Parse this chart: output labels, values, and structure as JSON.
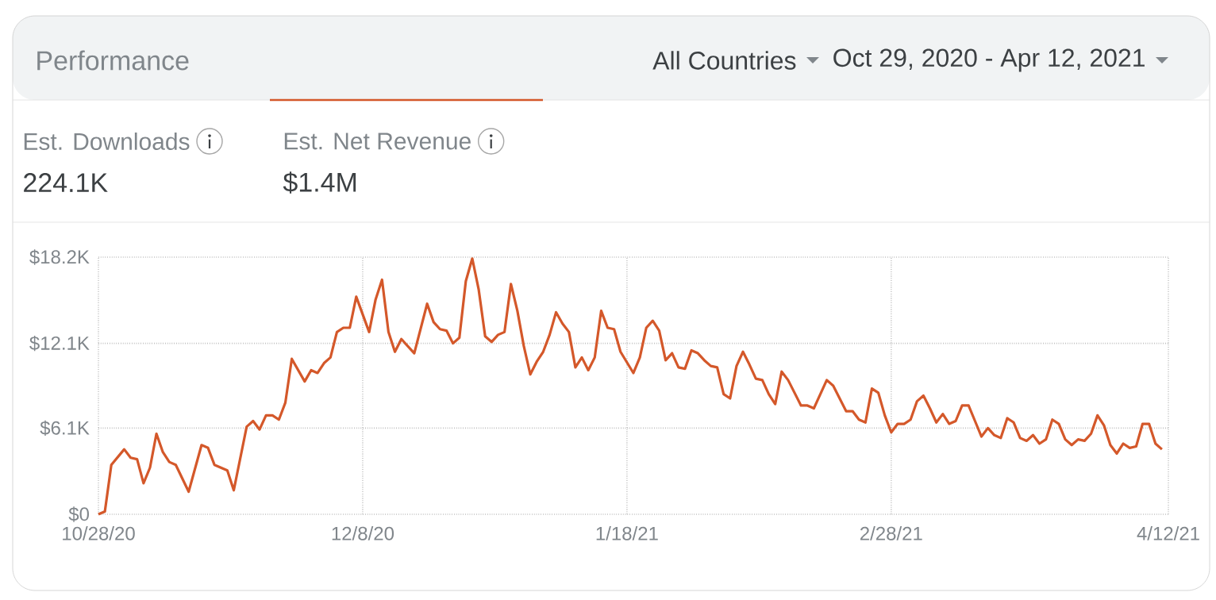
{
  "chart_data": {
    "type": "line",
    "title": "Performance",
    "annotations": [
      "All Countries",
      "Oct 29, 2020 - Apr 12, 2021",
      "Est. Downloads",
      "224.1K",
      "Est. Net Revenue",
      "$1.4M"
    ],
    "x": [
      "2020-10-28",
      "2020-10-29",
      "2020-10-30",
      "2020-11-01",
      "2020-11-02",
      "2020-11-03",
      "2020-11-04",
      "2020-11-05",
      "2020-11-06",
      "2020-11-07",
      "2020-11-08",
      "2020-11-09",
      "2020-11-11",
      "2020-11-13",
      "2020-11-14",
      "2020-11-15",
      "2020-11-17",
      "2020-11-18",
      "2020-11-20",
      "2020-11-21",
      "2020-11-22",
      "2020-11-23",
      "2020-11-24",
      "2020-11-25",
      "2020-11-26",
      "2020-11-27",
      "2020-11-29",
      "2020-11-30",
      "2020-12-01",
      "2020-12-02",
      "2020-12-03",
      "2020-12-04",
      "2020-12-05",
      "2020-12-06",
      "2020-12-07",
      "2020-12-09",
      "2020-12-10",
      "2020-12-11",
      "2020-12-12",
      "2020-12-13",
      "2020-12-14",
      "2020-12-16",
      "2020-12-18",
      "2020-12-19",
      "2020-12-20",
      "2020-12-21",
      "2020-12-22",
      "2020-12-23",
      "2020-12-24",
      "2020-12-25",
      "2020-12-26",
      "2020-12-27",
      "2020-12-28",
      "2020-12-29",
      "2020-12-30",
      "2020-12-31",
      "2021-01-01",
      "2021-01-02",
      "2021-01-03",
      "2021-01-04",
      "2021-01-05",
      "2021-01-06",
      "2021-01-07",
      "2021-01-08",
      "2021-01-09",
      "2021-01-10",
      "2021-01-11",
      "2021-01-12",
      "2021-01-13",
      "2021-01-14",
      "2021-01-15",
      "2021-01-16",
      "2021-01-17",
      "2021-01-19",
      "2021-01-20",
      "2021-01-21",
      "2021-01-22",
      "2021-01-23",
      "2021-01-24",
      "2021-01-25",
      "2021-01-26",
      "2021-01-27",
      "2021-01-28",
      "2021-01-29",
      "2021-01-30",
      "2021-01-31",
      "2021-02-01",
      "2021-02-02",
      "2021-02-03",
      "2021-02-04",
      "2021-02-05",
      "2021-02-06",
      "2021-02-07",
      "2021-02-08",
      "2021-02-09",
      "2021-02-10",
      "2021-02-11",
      "2021-02-12",
      "2021-02-14",
      "2021-02-15",
      "2021-02-16",
      "2021-02-18",
      "2021-02-19",
      "2021-02-21",
      "2021-02-22",
      "2021-02-23",
      "2021-02-24",
      "2021-02-25",
      "2021-02-26",
      "2021-02-27",
      "2021-02-28",
      "2021-03-01",
      "2021-03-02",
      "2021-03-03",
      "2021-03-04",
      "2021-03-05",
      "2021-03-06",
      "2021-03-07",
      "2021-03-08",
      "2021-03-09",
      "2021-03-10",
      "2021-03-11",
      "2021-03-12",
      "2021-03-13",
      "2021-03-14",
      "2021-03-15",
      "2021-03-16",
      "2021-03-17",
      "2021-03-18",
      "2021-03-19",
      "2021-03-20",
      "2021-03-21",
      "2021-03-22",
      "2021-03-23",
      "2021-03-24",
      "2021-03-25",
      "2021-03-26",
      "2021-03-27",
      "2021-03-28",
      "2021-03-29",
      "2021-03-30",
      "2021-03-31",
      "2021-04-01",
      "2021-04-02",
      "2021-04-03",
      "2021-04-04",
      "2021-04-05",
      "2021-04-06",
      "2021-04-07",
      "2021-04-08",
      "2021-04-09",
      "2021-04-10",
      "2021-04-11"
    ],
    "series": [
      {
        "color": "#d4582a",
        "values": [
          0,
          200,
          3500,
          4600,
          4000,
          3900,
          2200,
          3300,
          5700,
          4400,
          3700,
          3500,
          1600,
          4900,
          4700,
          3500,
          3100,
          1700,
          6200,
          6600,
          6000,
          7000,
          7000,
          6700,
          7900,
          11000,
          9400,
          10200,
          10000,
          10700,
          11100,
          12900,
          13200,
          13200,
          15400,
          12900,
          15200,
          16600,
          12900,
          11500,
          12400,
          11400,
          14900,
          13600,
          13100,
          13000,
          12100,
          12500,
          16500,
          18100,
          15900,
          12600,
          12200,
          12700,
          12900,
          16300,
          14400,
          11900,
          9900,
          10800,
          11500,
          12700,
          14300,
          13500,
          12900,
          10400,
          11100,
          10200,
          11100,
          14400,
          13200,
          13100,
          11500,
          10000,
          11100,
          13200,
          13700,
          13000,
          10900,
          11400,
          10400,
          10300,
          11600,
          11400,
          10900,
          10500,
          10400,
          8500,
          8200,
          10500,
          11500,
          10600,
          9600,
          9500,
          8500,
          7800,
          10100,
          9500,
          7700,
          7700,
          7500,
          9500,
          9100,
          7300,
          7300,
          6700,
          6500,
          8900,
          8600,
          7000,
          5800,
          6400,
          6400,
          6700,
          8000,
          8400,
          7500,
          6500,
          7100,
          6400,
          6600,
          7700,
          7700,
          6600,
          5500,
          6100,
          5600,
          5400,
          6800,
          6500,
          5400,
          5200,
          5600,
          5000,
          5300,
          6700,
          6400,
          5300,
          4900,
          5300,
          5200,
          5700,
          7000,
          6300,
          4900,
          4300,
          5000,
          4700,
          4800,
          6400,
          6400,
          5000,
          4600
        ]
      }
    ],
    "xlim": [
      "2020-10-28",
      "2021-04-12"
    ],
    "xticks": [
      {
        "value": "2020-10-28",
        "label": "10/28/20"
      },
      {
        "value": "2020-12-08",
        "label": "12/8/20"
      },
      {
        "value": "2021-01-18",
        "label": "1/18/21"
      },
      {
        "value": "2021-02-28",
        "label": "2/28/21"
      },
      {
        "value": "2021-04-12",
        "label": "4/12/21"
      }
    ],
    "ylim": [
      0,
      18200
    ],
    "yticks": [
      {
        "value": 0,
        "label": "$0"
      },
      {
        "value": 6100,
        "label": "$6.1K"
      },
      {
        "value": 12100,
        "label": "$12.1K"
      },
      {
        "value": 18200,
        "label": "$18.2K"
      }
    ],
    "grid": true,
    "marker": "none",
    "line_style": "solid"
  }
}
